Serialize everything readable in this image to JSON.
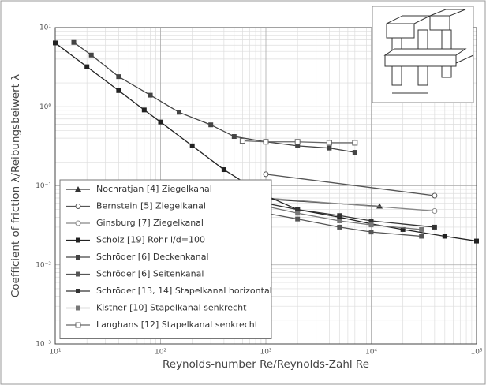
{
  "chart_data": {
    "type": "line",
    "log_x": true,
    "log_y": true,
    "grid": true,
    "legend": "lower left",
    "x_label": "Reynolds-number Re/Reynolds-Zahl Re",
    "y_label": "Coefficient of friction λ/Reibungsbeiwert λ",
    "xlim": [
      10,
      100000
    ],
    "ylim": [
      0.001,
      10
    ],
    "xticks": [
      {
        "value": 10,
        "label": "10¹"
      },
      {
        "value": 100,
        "label": "10²"
      },
      {
        "value": 1000,
        "label": "10³"
      },
      {
        "value": 10000,
        "label": "10⁴"
      },
      {
        "value": 100000,
        "label": "10⁵"
      }
    ],
    "yticks": [
      {
        "value": 0.001,
        "label": "10⁻³"
      },
      {
        "value": 0.01,
        "label": "10⁻²"
      },
      {
        "value": 0.1,
        "label": "10⁻¹"
      },
      {
        "value": 1,
        "label": "10⁰"
      },
      {
        "value": 10,
        "label": "10¹"
      }
    ],
    "series": [
      {
        "name": "Nochratjan [4] Ziegelkanal",
        "color": "#333",
        "marker": "triangle",
        "x": [
          1000,
          12000
        ],
        "values": [
          0.068,
          0.055
        ]
      },
      {
        "name": "Bernstein [5] Ziegelkanal",
        "color": "#555",
        "marker": "open-circle",
        "x": [
          1000,
          40000
        ],
        "values": [
          0.14,
          0.075
        ]
      },
      {
        "name": "Ginsburg [7] Ziegelkanal",
        "color": "#888",
        "marker": "open-circle",
        "x": [
          1000,
          40000
        ],
        "values": [
          0.07,
          0.048
        ]
      },
      {
        "name": "Scholz [19] Rohr l/d=100",
        "color": "#222",
        "marker": "square",
        "x": [
          10,
          20,
          40,
          70,
          100,
          200,
          400,
          700,
          1000,
          2000,
          5000,
          10000,
          20000,
          50000,
          100000
        ],
        "values": [
          6.4,
          3.2,
          1.6,
          0.91,
          0.64,
          0.32,
          0.16,
          0.1,
          0.075,
          0.05,
          0.04,
          0.033,
          0.028,
          0.023,
          0.02
        ]
      },
      {
        "name": "Schröder [6] Deckenkanal",
        "color": "#444",
        "marker": "square",
        "x": [
          15,
          22,
          40,
          80,
          150,
          300,
          500,
          1000,
          2000,
          4000,
          7000
        ],
        "values": [
          6.5,
          4.5,
          2.4,
          1.4,
          0.85,
          0.59,
          0.42,
          0.36,
          0.32,
          0.3,
          0.265
        ]
      },
      {
        "name": "Schröder [6] Seitenkanal",
        "color": "#555",
        "marker": "square",
        "x": [
          700,
          1000,
          2000,
          5000,
          10000,
          30000
        ],
        "values": [
          0.05,
          0.045,
          0.038,
          0.03,
          0.026,
          0.023
        ]
      },
      {
        "name": "Schröder [13, 14] Stapelkanal horizontal",
        "color": "#333",
        "marker": "square",
        "x": [
          1000,
          2000,
          5000,
          10000,
          40000
        ],
        "values": [
          0.06,
          0.05,
          0.042,
          0.036,
          0.03
        ]
      },
      {
        "name": "Kistner [10] Stapelkanal senkrecht",
        "color": "#777",
        "marker": "square",
        "x": [
          600,
          1000,
          2000,
          5000,
          10000,
          30000
        ],
        "values": [
          0.065,
          0.055,
          0.045,
          0.036,
          0.032,
          0.028
        ]
      },
      {
        "name": "Langhans [12] Stapelkanal senkrecht",
        "color": "#666",
        "marker": "open-square",
        "x": [
          600,
          1000,
          2000,
          4000,
          7000
        ],
        "values": [
          0.37,
          0.36,
          0.36,
          0.35,
          0.35
        ]
      }
    ]
  }
}
